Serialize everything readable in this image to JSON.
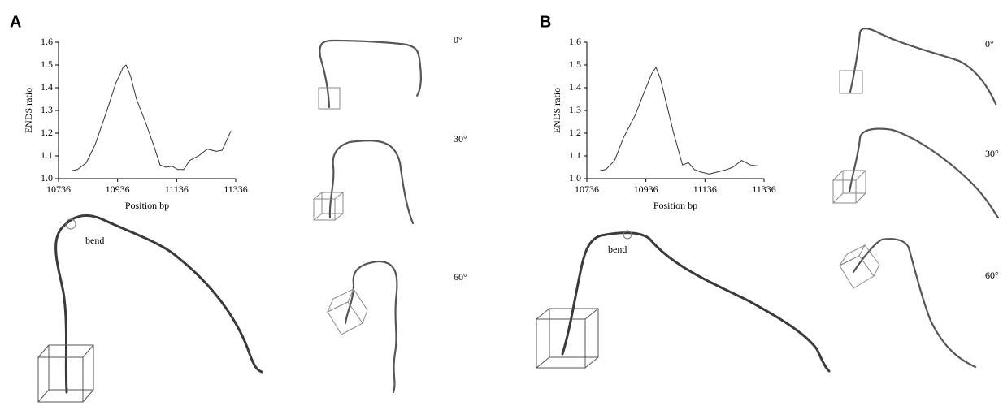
{
  "chart_data": [
    {
      "type": "line",
      "panel_label": "A",
      "ylabel": "ENDS ratio",
      "xlabel": "Position bp",
      "annotation": "bend",
      "rotation_labels": [
        "0°",
        "30°",
        "60°"
      ],
      "color": "#333333",
      "x": [
        10780,
        10800,
        10830,
        10860,
        10900,
        10930,
        10955,
        10965,
        10980,
        11000,
        11030,
        11060,
        11080,
        11100,
        11120,
        11140,
        11160,
        11180,
        11210,
        11240,
        11270,
        11290,
        11320
      ],
      "values": [
        1.035,
        1.04,
        1.07,
        1.15,
        1.3,
        1.42,
        1.49,
        1.5,
        1.45,
        1.35,
        1.25,
        1.14,
        1.06,
        1.05,
        1.055,
        1.04,
        1.04,
        1.08,
        1.1,
        1.13,
        1.12,
        1.125,
        1.21
      ],
      "xlim": [
        10736,
        11336
      ],
      "ylim": [
        1.0,
        1.6
      ],
      "xticks": [
        10736,
        10936,
        11136,
        11336
      ],
      "yticks": [
        {
          "value": 1.0,
          "label": "1.0"
        },
        1.1,
        1.2,
        1.3,
        1.4,
        1.5,
        1.6
      ]
    },
    {
      "type": "line",
      "panel_label": "B",
      "ylabel": "ENDS ratio",
      "xlabel": "Position bp",
      "annotation": "bend",
      "rotation_labels": [
        "0°",
        "30°",
        "60°"
      ],
      "color": "#333333",
      "x": [
        10780,
        10800,
        10830,
        10860,
        10900,
        10930,
        10955,
        10970,
        10985,
        11000,
        11030,
        11060,
        11080,
        11100,
        11120,
        11150,
        11180,
        11210,
        11230,
        11260,
        11290,
        11320
      ],
      "values": [
        1.035,
        1.04,
        1.08,
        1.18,
        1.28,
        1.38,
        1.46,
        1.49,
        1.44,
        1.36,
        1.2,
        1.06,
        1.07,
        1.04,
        1.03,
        1.02,
        1.03,
        1.04,
        1.05,
        1.08,
        1.06,
        1.055
      ],
      "xlim": [
        10736,
        11336
      ],
      "ylim": [
        1.0,
        1.6
      ],
      "xticks": [
        10736,
        10936,
        11136,
        11336
      ],
      "yticks": [
        {
          "value": 1.0,
          "label": "1.0"
        },
        1.1,
        1.2,
        1.3,
        1.4,
        1.5,
        1.6
      ]
    }
  ]
}
